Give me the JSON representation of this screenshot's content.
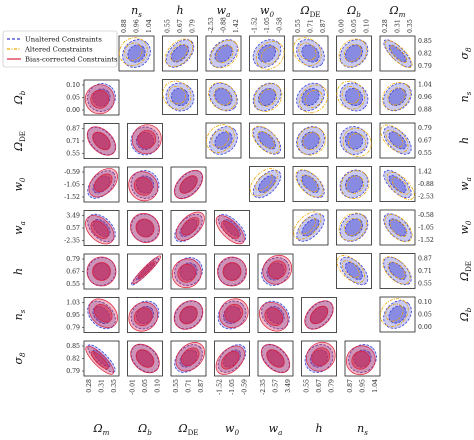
{
  "chart_data": {
    "type": "corner",
    "parameters": [
      {
        "label": "σ8",
        "ticks": [
          "0.79",
          "0.82",
          "0.85"
        ]
      },
      {
        "label": "ns",
        "ticks": [
          "0.88",
          "0.96",
          "1.04"
        ]
      },
      {
        "label": "h",
        "ticks": [
          "0.55",
          "0.67",
          "0.79"
        ]
      },
      {
        "label": "wa",
        "ticks": [
          "-2.53",
          "-0.88",
          "1.42"
        ]
      },
      {
        "label": "w0",
        "ticks": [
          "-1.52",
          "-1.05",
          "-0.58"
        ]
      },
      {
        "label": "ΩDE",
        "ticks": [
          "0.55",
          "0.71",
          "0.87"
        ]
      },
      {
        "label": "Ωb",
        "ticks": [
          "0.00",
          "0.05",
          "0.10"
        ]
      },
      {
        "label": "Ωm",
        "ticks": [
          "0.28",
          "0.31",
          "0.35"
        ]
      }
    ],
    "lower_triangle": {
      "row_labels": [
        "Ωb",
        "ΩDE",
        "w0",
        "wa",
        "h",
        "ns",
        "σ8"
      ],
      "col_labels": [
        "Ωm",
        "Ωb",
        "ΩDE",
        "w0",
        "wa",
        "h",
        "ns"
      ],
      "row_ticks": [
        [
          "0.10",
          "0.05",
          "0.00"
        ],
        [
          "0.87",
          "0.71",
          "0.55"
        ],
        [
          "-0.59",
          "-1.05",
          "-1.52"
        ],
        [
          "3.49",
          "0.57",
          "-2.35"
        ],
        [
          "0.79",
          "0.67",
          "0.55"
        ],
        [
          "1.03",
          "0.95",
          "0.79"
        ],
        [
          "0.85",
          "0.82",
          "0.79"
        ]
      ],
      "col_ticks": [
        [
          "0.28",
          "0.31",
          "0.35"
        ],
        [
          "-0.01",
          "0.05",
          "0.10"
        ],
        [
          "0.55",
          "0.71",
          "0.87"
        ],
        [
          "-1.52",
          "-1.05",
          "-0.59"
        ],
        [
          "-2.35",
          "0.57",
          "3.49"
        ],
        [
          "0.55",
          "0.67",
          "0.79"
        ],
        [
          "0.87",
          "0.95",
          "1.04"
        ]
      ]
    },
    "upper_triangle": {
      "col_labels": [
        "ns",
        "h",
        "wa",
        "w0",
        "ΩDE",
        "Ωb",
        "Ωm"
      ],
      "row_labels": [
        "σ8",
        "ns",
        "h",
        "wa",
        "w0",
        "ΩDE",
        "Ωb"
      ],
      "col_ticks": [
        [
          "0.88",
          "0.96",
          "1.04"
        ],
        [
          "0.55",
          "0.67",
          "0.79"
        ],
        [
          "-2.53",
          "-0.88",
          "1.42"
        ],
        [
          "-1.52",
          "-1.05",
          "-0.58"
        ],
        [
          "0.55",
          "0.71",
          "0.87"
        ],
        [
          "0.00",
          "0.05",
          "0.10"
        ],
        [
          "0.28",
          "0.31",
          "0.35"
        ]
      ],
      "row_ticks": [
        [
          "0.85",
          "0.82",
          "0.79"
        ],
        [
          "1.04",
          "0.96",
          "0.88"
        ],
        [
          "0.79",
          "0.67",
          "0.55"
        ],
        [
          "1.42",
          "-0.88",
          "-2.53"
        ],
        [
          "-0.58",
          "-1.05",
          "-1.52"
        ],
        [
          "0.87",
          "0.71",
          "0.55"
        ],
        [
          "0.10",
          "0.05",
          "0.00"
        ]
      ]
    },
    "legend": {
      "placement": "top-left",
      "entries": [
        {
          "name": "Unaltered Constraints",
          "color": "#3b3fcf",
          "style": "dashed"
        },
        {
          "name": "Altered Constraints",
          "color": "#f0a500",
          "style": "dashdot"
        },
        {
          "name": "Bias-corrected Constraints",
          "color": "#d9213f",
          "style": "solid"
        }
      ]
    },
    "lower_correlations": [
      [
        0.1
      ],
      [
        -0.5,
        -0.05
      ],
      [
        0.5,
        0.0,
        0.55
      ],
      [
        -0.5,
        0.0,
        0.6,
        -0.7
      ],
      [
        0.1,
        0.95,
        0.15,
        0.1,
        0.2
      ],
      [
        -0.4,
        0.2,
        0.3,
        0.2,
        -0.3,
        0.5
      ],
      [
        -0.85,
        -0.4,
        0.4,
        0.5,
        -0.5,
        0.2,
        0.15
      ]
    ],
    "upper_correlations": [
      [
        0.2,
        0.5,
        0.4,
        0.3,
        -0.3,
        0.3,
        -0.8
      ],
      [
        0.0,
        -0.3,
        0.3,
        0.3,
        -0.2,
        0.3,
        -0.5
      ],
      [
        0.3,
        -0.6,
        0.2,
        0.0,
        -0.6,
        0.2,
        -0.7
      ],
      [
        0.6,
        -0.6,
        0.2,
        -0.7
      ],
      [
        0.6,
        0.3,
        -0.6
      ],
      [
        -0.6,
        -0.6
      ],
      [
        0.3
      ]
    ],
    "colors": {
      "unaltered": "#3b3fcf",
      "altered": "#f0a500",
      "bias_corrected": "#d9213f"
    }
  }
}
